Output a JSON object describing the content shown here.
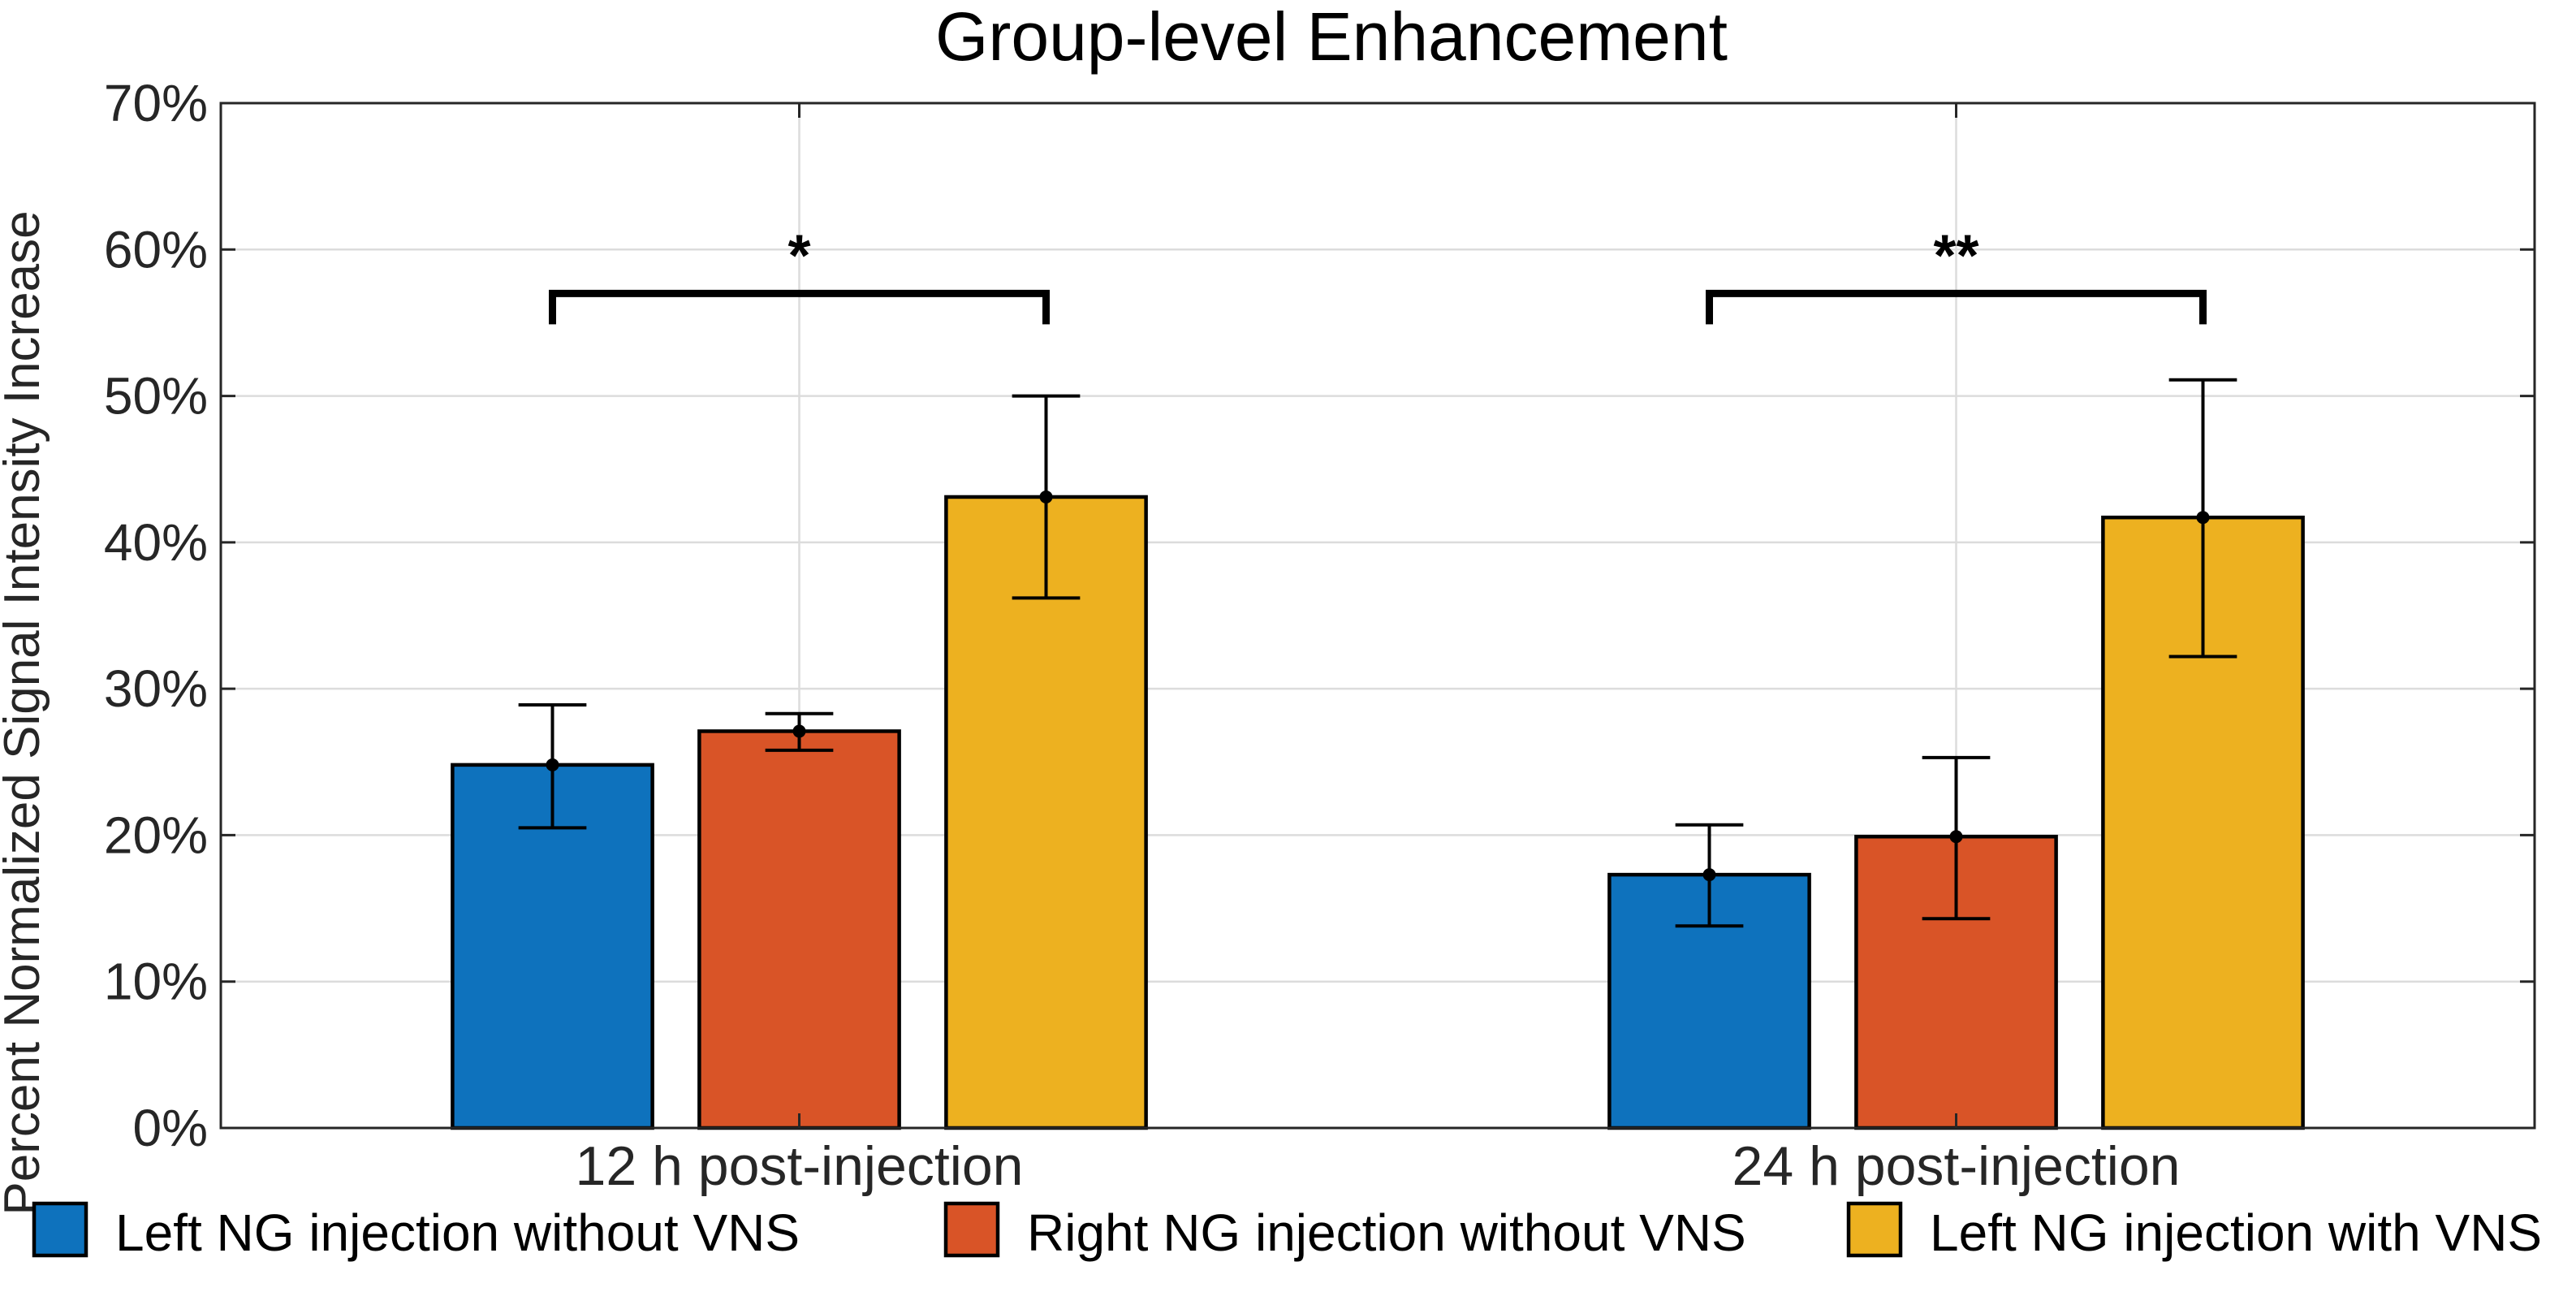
{
  "chart_data": {
    "type": "bar",
    "title": "Group-level Enhancement",
    "xlabel": "",
    "ylabel": "Percent Normalized Signal Intensity Increase",
    "ylim": [
      0,
      70
    ],
    "yticks": [
      0,
      10,
      20,
      30,
      40,
      50,
      60,
      70
    ],
    "ytick_labels": [
      "0%",
      "10%",
      "20%",
      "30%",
      "40%",
      "50%",
      "60%",
      "70%"
    ],
    "grid": true,
    "categories": [
      "12 h post-injection",
      "24 h post-injection"
    ],
    "series": [
      {
        "name": "Left NG injection without VNS",
        "color": "#0e72bd",
        "values": [
          24.8,
          17.3
        ],
        "err_low": [
          20.5,
          13.8
        ],
        "err_high": [
          28.9,
          20.7
        ]
      },
      {
        "name": "Right NG injection without VNS",
        "color": "#d95427",
        "values": [
          27.1,
          19.9
        ],
        "err_low": [
          25.8,
          14.3
        ],
        "err_high": [
          28.3,
          25.3
        ]
      },
      {
        "name": "Left NG injection with VNS",
        "color": "#edb120",
        "values": [
          43.1,
          41.7
        ],
        "err_low": [
          36.2,
          32.2
        ],
        "err_high": [
          50.0,
          51.1
        ]
      }
    ],
    "significance": [
      {
        "category": 0,
        "from_series": 0,
        "to_series": 2,
        "level": 57,
        "label": "*"
      },
      {
        "category": 1,
        "from_series": 0,
        "to_series": 2,
        "level": 57,
        "label": "**"
      }
    ],
    "legend_position": "bottom"
  }
}
